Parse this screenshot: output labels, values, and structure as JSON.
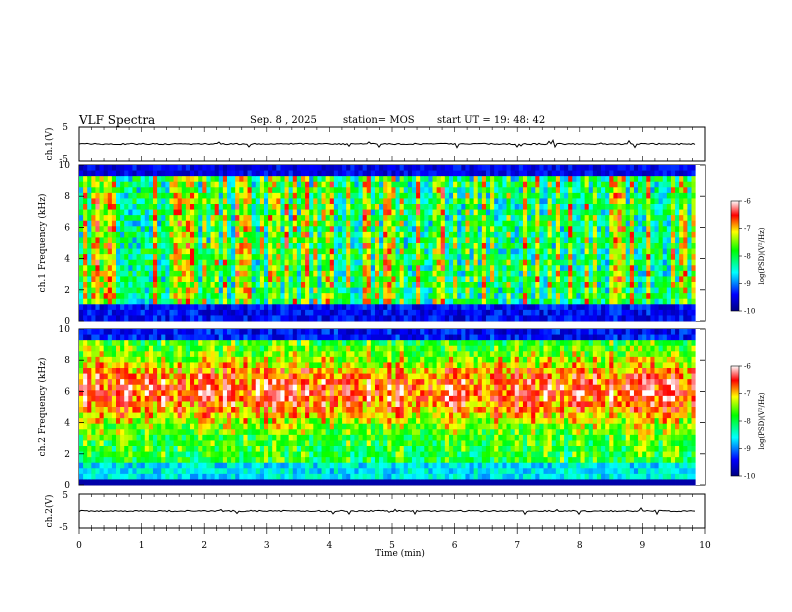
{
  "header": {
    "title": "VLF Spectra",
    "date": "Sep. 8 , 2025",
    "station": "station= MOS",
    "start_ut": "start UT = 19: 48: 42"
  },
  "chart_data": [
    {
      "type": "line",
      "panel": "ch1-waveform",
      "ylabel": "ch.1(V)",
      "ylim": [
        -5,
        5
      ],
      "yticks": [
        "5",
        "-5"
      ],
      "xlim": [
        0,
        10
      ],
      "baseline_v": 0,
      "note_series": "near-constant trace close to 0 V with small spikes"
    },
    {
      "type": "heatmap",
      "panel": "ch1-spectrogram",
      "ylabel": "ch.1 Frequency (kHz)",
      "ylim": [
        0,
        10
      ],
      "yticks": [
        "0",
        "2",
        "4",
        "6",
        "8",
        "10"
      ],
      "xlim": [
        0,
        9.85
      ],
      "colorbar": {
        "label": "log(PSD)(V²/Hz)",
        "range": [
          -10,
          -6
        ],
        "ticks": [
          "-6",
          "-7",
          "-8",
          "-9",
          "-10"
        ]
      }
    },
    {
      "type": "heatmap",
      "panel": "ch2-spectrogram",
      "ylabel": "ch.2 Frequency (kHz)",
      "ylim": [
        0,
        10
      ],
      "yticks": [
        "0",
        "2",
        "4",
        "6",
        "8",
        "10"
      ],
      "xlim": [
        0,
        9.85
      ],
      "colorbar": {
        "label": "log(PSD)(V²/Hz)",
        "range": [
          -10,
          -6
        ],
        "ticks": [
          "-6",
          "-7",
          "-8",
          "-9",
          "-10"
        ]
      }
    },
    {
      "type": "line",
      "panel": "ch2-waveform",
      "ylabel": "ch.2(V)",
      "ylim": [
        -5,
        5
      ],
      "yticks": [
        "5",
        "-5"
      ],
      "xlim": [
        0,
        10
      ],
      "baseline_v": 0
    }
  ],
  "xaxis": {
    "label": "Time (min)",
    "range": [
      0,
      10
    ],
    "ticks": [
      "0",
      "1",
      "2",
      "3",
      "4",
      "5",
      "6",
      "7",
      "8",
      "9",
      "10"
    ]
  },
  "colors": {
    "colormap": [
      "#000080",
      "#0000ff",
      "#00ffff",
      "#00ff00",
      "#ffff00",
      "#ff0000",
      "#ffffff"
    ]
  }
}
